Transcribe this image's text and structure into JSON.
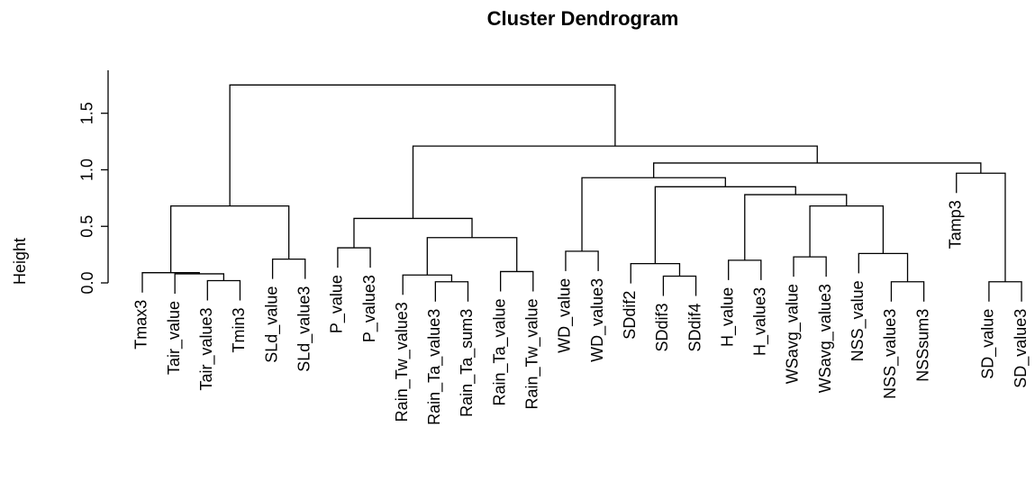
{
  "chart_data": {
    "type": "dendrogram",
    "title": "Cluster Dendrogram",
    "y_label": "Height",
    "ylim": [
      0,
      1.88
    ],
    "yticks": [
      {
        "value": 0,
        "label": "0.0"
      },
      0.5,
      {
        "value": 1,
        "label": "1.0"
      },
      1.5
    ],
    "tree": {
      "height": 1.75,
      "children": [
        {
          "height": 0.68,
          "children": [
            {
              "height": 0.09,
              "children": [
                {
                  "label": "Tmax3"
                },
                {
                  "height": 0.08,
                  "children": [
                    {
                      "label": "Tair_value"
                    },
                    {
                      "height": 0.02,
                      "children": [
                        {
                          "label": "Tair_value3"
                        },
                        {
                          "label": "Tmin3"
                        }
                      ]
                    }
                  ]
                }
              ]
            },
            {
              "height": 0.21,
              "children": [
                {
                  "label": "SLd_value"
                },
                {
                  "label": "SLd_value3"
                }
              ]
            }
          ]
        },
        {
          "height": 1.21,
          "children": [
            {
              "height": 0.57,
              "children": [
                {
                  "height": 0.31,
                  "children": [
                    {
                      "label": "P_value"
                    },
                    {
                      "label": "P_value3"
                    }
                  ]
                },
                {
                  "height": 0.4,
                  "children": [
                    {
                      "height": 0.07,
                      "children": [
                        {
                          "label": "Rain_Tw_value3"
                        },
                        {
                          "height": 0.01,
                          "children": [
                            {
                              "label": "Rain_Ta_value3"
                            },
                            {
                              "label": "Rain_Ta_sum3"
                            }
                          ]
                        }
                      ]
                    },
                    {
                      "height": 0.1,
                      "children": [
                        {
                          "label": "Rain_Ta_value"
                        },
                        {
                          "label": "Rain_Tw_value"
                        }
                      ]
                    }
                  ]
                }
              ]
            },
            {
              "height": 1.06,
              "children": [
                {
                  "height": 0.93,
                  "children": [
                    {
                      "height": 0.28,
                      "children": [
                        {
                          "label": "WD_value"
                        },
                        {
                          "label": "WD_value3"
                        }
                      ]
                    },
                    {
                      "height": 0.85,
                      "children": [
                        {
                          "height": 0.17,
                          "children": [
                            {
                              "label": "SDdif2"
                            },
                            {
                              "height": 0.06,
                              "children": [
                                {
                                  "label": "SDdif3"
                                },
                                {
                                  "label": "SDdif4"
                                }
                              ]
                            }
                          ]
                        },
                        {
                          "height": 0.78,
                          "children": [
                            {
                              "height": 0.2,
                              "children": [
                                {
                                  "label": "H_value"
                                },
                                {
                                  "label": "H_value3"
                                }
                              ]
                            },
                            {
                              "height": 0.68,
                              "children": [
                                {
                                  "height": 0.23,
                                  "children": [
                                    {
                                      "label": "WSavg_value"
                                    },
                                    {
                                      "label": "WSavg_value3"
                                    }
                                  ]
                                },
                                {
                                  "height": 0.26,
                                  "children": [
                                    {
                                      "label": "NSS_value"
                                    },
                                    {
                                      "height": 0.01,
                                      "children": [
                                        {
                                          "label": "NSS_value3"
                                        },
                                        {
                                          "label": "NSSsum3"
                                        }
                                      ]
                                    }
                                  ]
                                }
                              ]
                            }
                          ]
                        }
                      ]
                    }
                  ]
                },
                {
                  "height": 0.97,
                  "children": [
                    {
                      "label": "Tamp3"
                    },
                    {
                      "height": 0.01,
                      "children": [
                        {
                          "label": "SD_value"
                        },
                        {
                          "label": "SD_value3"
                        }
                      ]
                    }
                  ]
                }
              ]
            }
          ]
        }
      ]
    }
  }
}
